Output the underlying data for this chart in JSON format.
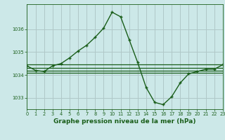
{
  "title": "Graphe pression niveau de la mer (hPa)",
  "background_color": "#cce8e8",
  "grid_color": "#b0c8c8",
  "line_color": "#1a5e1a",
  "marker_color": "#1a5e1a",
  "hours": [
    0,
    1,
    2,
    3,
    4,
    5,
    6,
    7,
    8,
    9,
    10,
    11,
    12,
    13,
    14,
    15,
    16,
    17,
    18,
    19,
    20,
    21,
    22,
    23
  ],
  "pressure": [
    1034.4,
    1034.2,
    1034.15,
    1034.4,
    1034.5,
    1034.75,
    1035.05,
    1035.3,
    1035.65,
    1036.05,
    1036.75,
    1036.55,
    1035.55,
    1034.55,
    1033.45,
    1032.8,
    1032.7,
    1033.05,
    1033.65,
    1034.05,
    1034.15,
    1034.25,
    1034.25,
    1034.45
  ],
  "hline1": 1034.45,
  "hline2": 1034.2,
  "hline3": 1034.3,
  "hline4": 1034.1,
  "ylim_min": 1032.5,
  "ylim_max": 1037.1,
  "yticks": [
    1033,
    1034,
    1035,
    1036
  ],
  "xlim_min": 0,
  "xlim_max": 23,
  "title_fontsize": 6.5,
  "tick_fontsize": 4.8,
  "label_color": "#1a5e1a",
  "fig_width": 3.2,
  "fig_height": 2.0
}
